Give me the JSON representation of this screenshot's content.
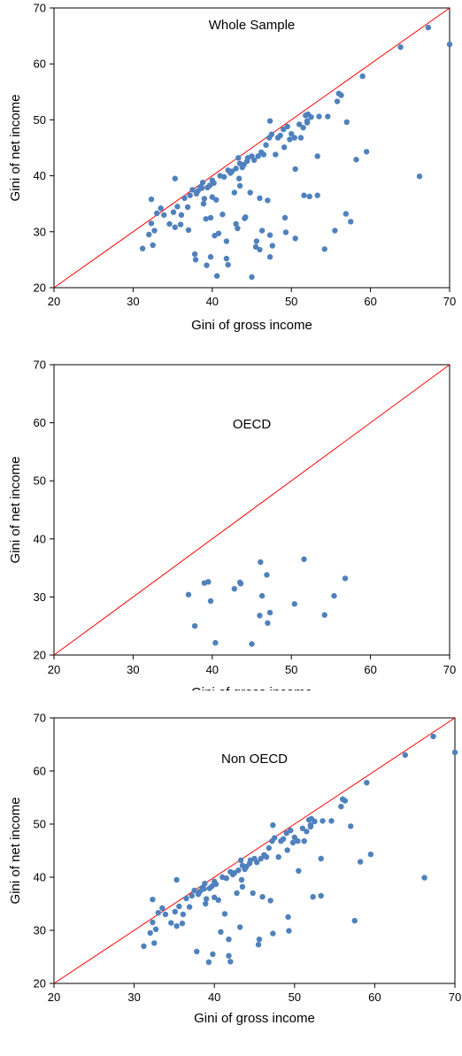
{
  "chart_data": [
    {
      "type": "scatter",
      "title": "Whole Sample",
      "xlabel": "Gini of gross income",
      "ylabel": "Gini of net income",
      "xlim": [
        20,
        70
      ],
      "ylim": [
        20,
        70
      ],
      "xticks": [
        "20",
        "30",
        "40",
        "50",
        "60",
        "70"
      ],
      "yticks": [
        "20",
        "30",
        "40",
        "50",
        "60",
        "70"
      ],
      "point_color": "#4F81BD",
      "reference_line": {
        "from": [
          20,
          20
        ],
        "to": [
          70,
          70
        ],
        "color": "#FF0000"
      },
      "points": [
        [
          31.2,
          27.0
        ],
        [
          32.0,
          29.5
        ],
        [
          32.3,
          31.5
        ],
        [
          32.3,
          35.8
        ],
        [
          32.5,
          27.6
        ],
        [
          32.7,
          30.2
        ],
        [
          33.0,
          33.3
        ],
        [
          33.5,
          34.2
        ],
        [
          33.9,
          33.0
        ],
        [
          34.6,
          31.4
        ],
        [
          35.1,
          33.5
        ],
        [
          35.3,
          39.5
        ],
        [
          35.3,
          30.8
        ],
        [
          35.6,
          34.5
        ],
        [
          36.1,
          33.0
        ],
        [
          36.0,
          31.3
        ],
        [
          36.5,
          36.0
        ],
        [
          36.9,
          34.4
        ],
        [
          37.0,
          30.3
        ],
        [
          37.2,
          36.5
        ],
        [
          37.5,
          37.5
        ],
        [
          37.8,
          26.0
        ],
        [
          37.9,
          25.0
        ],
        [
          38.0,
          36.8
        ],
        [
          38.2,
          37.3
        ],
        [
          38.5,
          38.0
        ],
        [
          38.7,
          37.8
        ],
        [
          38.8,
          38.8
        ],
        [
          38.9,
          35.0
        ],
        [
          39.0,
          35.9
        ],
        [
          39.2,
          32.3
        ],
        [
          39.3,
          24.0
        ],
        [
          39.4,
          37.9
        ],
        [
          39.7,
          38.3
        ],
        [
          39.8,
          32.5
        ],
        [
          39.8,
          25.5
        ],
        [
          40.0,
          39.2
        ],
        [
          40.0,
          36.2
        ],
        [
          40.2,
          38.7
        ],
        [
          40.3,
          29.3
        ],
        [
          40.5,
          35.7
        ],
        [
          40.6,
          22.1
        ],
        [
          40.8,
          29.7
        ],
        [
          41.0,
          40.0
        ],
        [
          41.3,
          33.1
        ],
        [
          41.5,
          39.8
        ],
        [
          41.8,
          25.2
        ],
        [
          41.8,
          28.3
        ],
        [
          42.0,
          41.0
        ],
        [
          42.0,
          24.1
        ],
        [
          42.3,
          40.5
        ],
        [
          42.5,
          40.8
        ],
        [
          42.8,
          37.0
        ],
        [
          43.0,
          41.3
        ],
        [
          43.0,
          31.4
        ],
        [
          43.2,
          30.6
        ],
        [
          43.3,
          43.2
        ],
        [
          43.4,
          39.5
        ],
        [
          43.5,
          42.2
        ],
        [
          43.5,
          38.2
        ],
        [
          43.8,
          41.5
        ],
        [
          44.0,
          42.0
        ],
        [
          44.1,
          32.4
        ],
        [
          44.2,
          32.6
        ],
        [
          44.4,
          42.6
        ],
        [
          44.5,
          43.2
        ],
        [
          44.8,
          37.0
        ],
        [
          45.0,
          43.5
        ],
        [
          45.0,
          21.9
        ],
        [
          45.3,
          42.8
        ],
        [
          45.5,
          27.3
        ],
        [
          45.6,
          28.3
        ],
        [
          45.8,
          43.5
        ],
        [
          46.0,
          26.8
        ],
        [
          46.0,
          36.0
        ],
        [
          46.2,
          44.2
        ],
        [
          46.3,
          30.2
        ],
        [
          46.5,
          43.8
        ],
        [
          46.8,
          45.5
        ],
        [
          47.0,
          35.6
        ],
        [
          47.2,
          46.8
        ],
        [
          47.3,
          49.8
        ],
        [
          47.3,
          29.4
        ],
        [
          47.3,
          25.5
        ],
        [
          47.5,
          47.4
        ],
        [
          47.6,
          27.5
        ],
        [
          48.0,
          43.8
        ],
        [
          48.3,
          46.8
        ],
        [
          48.6,
          47.2
        ],
        [
          49.0,
          48.3
        ],
        [
          49.1,
          45.1
        ],
        [
          49.2,
          32.5
        ],
        [
          49.3,
          29.9
        ],
        [
          49.5,
          48.8
        ],
        [
          49.8,
          46.5
        ],
        [
          50.0,
          47.5
        ],
        [
          50.4,
          46.8
        ],
        [
          50.5,
          41.2
        ],
        [
          50.5,
          28.8
        ],
        [
          51.0,
          49.2
        ],
        [
          51.2,
          46.8
        ],
        [
          51.5,
          48.6
        ],
        [
          51.6,
          36.5
        ],
        [
          51.8,
          50.8
        ],
        [
          52.0,
          49.5
        ],
        [
          52.0,
          49.8
        ],
        [
          52.1,
          51.0
        ],
        [
          52.3,
          36.3
        ],
        [
          52.5,
          50.5
        ],
        [
          53.3,
          43.5
        ],
        [
          53.3,
          36.5
        ],
        [
          53.5,
          50.6
        ],
        [
          54.2,
          26.9
        ],
        [
          54.6,
          50.6
        ],
        [
          55.5,
          30.2
        ],
        [
          55.8,
          53.3
        ],
        [
          56.0,
          54.7
        ],
        [
          56.3,
          54.4
        ],
        [
          56.9,
          33.2
        ],
        [
          57.0,
          49.6
        ],
        [
          57.5,
          31.8
        ],
        [
          58.2,
          42.9
        ],
        [
          59.0,
          57.8
        ],
        [
          59.5,
          44.3
        ],
        [
          63.8,
          63.0
        ],
        [
          66.2,
          39.9
        ],
        [
          67.3,
          66.5
        ],
        [
          70.0,
          63.5
        ]
      ]
    },
    {
      "type": "scatter",
      "title": "OECD",
      "xlabel": "Gini of gross income",
      "ylabel": "Gini of net income",
      "xlim": [
        20,
        70
      ],
      "ylim": [
        20,
        70
      ],
      "xticks": [
        "20",
        "30",
        "40",
        "50",
        "60",
        "70"
      ],
      "yticks": [
        "20",
        "30",
        "40",
        "50",
        "60",
        "70"
      ],
      "point_color": "#4F81BD",
      "reference_line": {
        "from": [
          20,
          20
        ],
        "to": [
          70,
          70
        ],
        "color": "#FF0000"
      },
      "points": [
        [
          37.0,
          30.4
        ],
        [
          37.8,
          25.0
        ],
        [
          39.0,
          32.4
        ],
        [
          39.5,
          32.6
        ],
        [
          39.8,
          29.3
        ],
        [
          40.4,
          22.1
        ],
        [
          42.8,
          31.4
        ],
        [
          43.5,
          32.5
        ],
        [
          43.6,
          32.3
        ],
        [
          45.0,
          21.9
        ],
        [
          46.0,
          26.8
        ],
        [
          46.1,
          36.0
        ],
        [
          46.3,
          30.2
        ],
        [
          46.9,
          33.8
        ],
        [
          47.0,
          25.5
        ],
        [
          47.3,
          27.3
        ],
        [
          50.4,
          28.8
        ],
        [
          51.6,
          36.5
        ],
        [
          54.2,
          26.9
        ],
        [
          55.4,
          30.2
        ],
        [
          56.8,
          33.2
        ]
      ]
    },
    {
      "type": "scatter",
      "title": "Non OECD",
      "xlabel": "Gini of gross income",
      "ylabel": "Gini of net income",
      "xlim": [
        20,
        70
      ],
      "ylim": [
        20,
        70
      ],
      "xticks": [
        "20",
        "30",
        "40",
        "50",
        "60",
        "70"
      ],
      "yticks": [
        "20",
        "30",
        "40",
        "50",
        "60",
        "70"
      ],
      "point_color": "#4F81BD",
      "reference_line": {
        "from": [
          20,
          20
        ],
        "to": [
          70,
          70
        ],
        "color": "#FF0000"
      },
      "points": [
        [
          31.2,
          27.0
        ],
        [
          32.0,
          29.5
        ],
        [
          32.3,
          31.5
        ],
        [
          32.3,
          35.8
        ],
        [
          32.5,
          27.6
        ],
        [
          32.7,
          30.2
        ],
        [
          33.0,
          33.3
        ],
        [
          33.5,
          34.2
        ],
        [
          33.9,
          33.0
        ],
        [
          34.6,
          31.4
        ],
        [
          35.1,
          33.5
        ],
        [
          35.3,
          39.5
        ],
        [
          35.3,
          30.8
        ],
        [
          35.6,
          34.5
        ],
        [
          36.1,
          33.0
        ],
        [
          36.0,
          31.3
        ],
        [
          36.5,
          36.0
        ],
        [
          36.9,
          34.4
        ],
        [
          37.2,
          36.5
        ],
        [
          37.5,
          37.5
        ],
        [
          37.8,
          26.0
        ],
        [
          38.0,
          36.8
        ],
        [
          38.2,
          37.3
        ],
        [
          38.5,
          38.0
        ],
        [
          38.7,
          37.8
        ],
        [
          38.8,
          38.8
        ],
        [
          38.9,
          35.0
        ],
        [
          39.0,
          35.9
        ],
        [
          39.3,
          24.0
        ],
        [
          39.4,
          37.9
        ],
        [
          39.7,
          38.3
        ],
        [
          39.8,
          25.5
        ],
        [
          40.0,
          39.2
        ],
        [
          40.0,
          36.2
        ],
        [
          40.2,
          38.7
        ],
        [
          40.5,
          35.7
        ],
        [
          40.8,
          29.7
        ],
        [
          41.0,
          40.0
        ],
        [
          41.3,
          33.1
        ],
        [
          41.5,
          39.8
        ],
        [
          41.8,
          25.2
        ],
        [
          41.8,
          28.3
        ],
        [
          42.0,
          41.0
        ],
        [
          42.0,
          24.1
        ],
        [
          42.3,
          40.5
        ],
        [
          42.5,
          40.8
        ],
        [
          42.8,
          37.0
        ],
        [
          43.0,
          41.3
        ],
        [
          43.2,
          30.6
        ],
        [
          43.3,
          43.2
        ],
        [
          43.4,
          39.5
        ],
        [
          43.5,
          42.2
        ],
        [
          43.5,
          38.2
        ],
        [
          43.8,
          41.5
        ],
        [
          44.0,
          42.0
        ],
        [
          44.4,
          42.6
        ],
        [
          44.5,
          43.2
        ],
        [
          44.8,
          37.0
        ],
        [
          45.0,
          43.5
        ],
        [
          45.3,
          42.8
        ],
        [
          45.5,
          27.3
        ],
        [
          45.6,
          28.3
        ],
        [
          45.8,
          43.5
        ],
        [
          46.0,
          36.3
        ],
        [
          46.2,
          44.2
        ],
        [
          46.5,
          43.8
        ],
        [
          46.8,
          45.5
        ],
        [
          47.0,
          35.6
        ],
        [
          47.2,
          46.8
        ],
        [
          47.3,
          49.8
        ],
        [
          47.3,
          29.4
        ],
        [
          47.5,
          47.4
        ],
        [
          48.0,
          43.8
        ],
        [
          48.3,
          46.8
        ],
        [
          48.6,
          47.2
        ],
        [
          49.0,
          48.3
        ],
        [
          49.1,
          45.1
        ],
        [
          49.2,
          32.5
        ],
        [
          49.3,
          29.9
        ],
        [
          49.5,
          48.8
        ],
        [
          49.8,
          46.5
        ],
        [
          50.0,
          47.5
        ],
        [
          50.4,
          46.8
        ],
        [
          50.5,
          41.2
        ],
        [
          51.0,
          49.2
        ],
        [
          51.2,
          46.8
        ],
        [
          51.5,
          48.6
        ],
        [
          51.8,
          50.8
        ],
        [
          52.0,
          49.5
        ],
        [
          52.0,
          49.8
        ],
        [
          52.1,
          51.0
        ],
        [
          52.3,
          36.3
        ],
        [
          52.5,
          50.5
        ],
        [
          53.3,
          43.5
        ],
        [
          53.3,
          36.5
        ],
        [
          53.5,
          50.6
        ],
        [
          54.6,
          50.6
        ],
        [
          55.8,
          53.3
        ],
        [
          56.0,
          54.7
        ],
        [
          56.3,
          54.4
        ],
        [
          57.0,
          49.6
        ],
        [
          57.5,
          31.8
        ],
        [
          58.2,
          42.9
        ],
        [
          59.0,
          57.8
        ],
        [
          59.5,
          44.3
        ],
        [
          63.8,
          63.0
        ],
        [
          66.2,
          39.9
        ],
        [
          67.3,
          66.5
        ],
        [
          70.0,
          63.5
        ]
      ]
    }
  ]
}
